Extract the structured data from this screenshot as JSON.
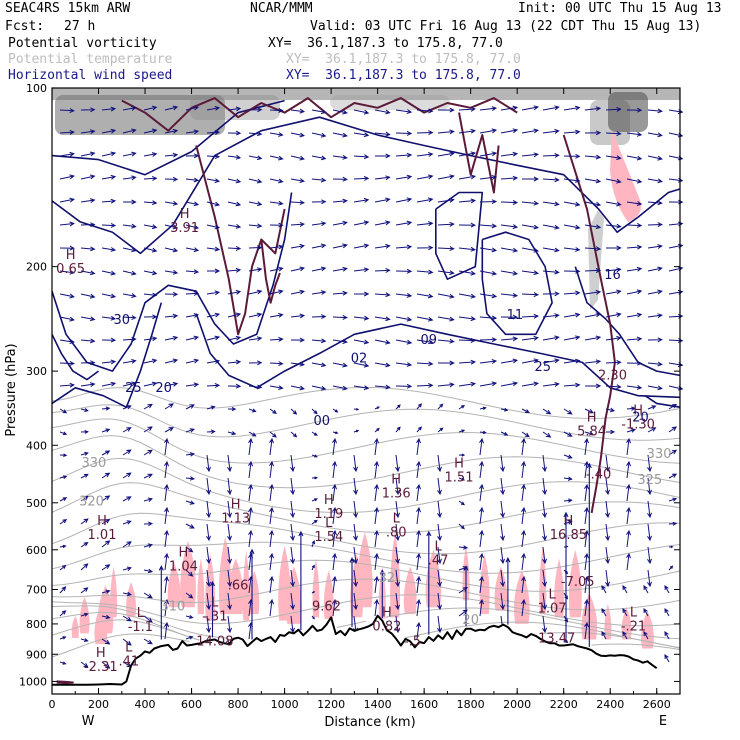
{
  "header": {
    "model": "SEAC4RS 15km ARW",
    "org": "NCAR/MMM",
    "init": "Init: 00 UTC Thu 15 Aug 13",
    "fcst_label": "Fcst:",
    "fcst_value": "27 h",
    "valid": "Valid: 03 UTC Fri 16 Aug 13 (22 CDT Thu 15 Aug 13)",
    "fields": [
      {
        "name": "Potential vorticity",
        "xy": "XY=  36.1,187.3 to 175.8, 77.0"
      },
      {
        "name": "Potential temperature",
        "xy": "XY=  36.1,187.3 to 175.8, 77.0"
      },
      {
        "name": "Horizontal wind speed",
        "xy": "XY=  36.1,187.3 to 175.8, 77.0"
      }
    ]
  },
  "colors": {
    "pv_contour": "#5c1a3a",
    "theta_contour": "#b4b4b4",
    "wind_contour": "#10106e",
    "wind_vector": "#10107e",
    "pv_fill": "#ffb6c1",
    "terrain": "#000000",
    "header_navy": "#1a1a8c",
    "header_grey": "#bdbdbd"
  },
  "chart_data": {
    "type": "cross-section",
    "xlabel": "Distance (km)",
    "ylabel": "Pressure (hPa)",
    "xlim": [
      0,
      2700
    ],
    "ylim": [
      100,
      1050
    ],
    "y_scale": "log",
    "x_ticks": [
      "0",
      "200",
      "400",
      "600",
      "800",
      "1000",
      "1200",
      "1400",
      "1600",
      "1800",
      "2000",
      "2200",
      "2400",
      "2600"
    ],
    "y_ticks": [
      "100",
      "200",
      "300",
      "400",
      "500",
      "600",
      "700",
      "800",
      "900",
      "1000"
    ],
    "x_end_labels": {
      "left": "W",
      "right": "E"
    },
    "terrain": {
      "x": [
        0,
        40,
        100,
        150,
        200,
        250,
        300,
        320,
        340,
        360,
        380,
        400,
        420,
        440,
        470,
        500,
        520,
        540,
        560,
        580,
        600,
        620,
        640,
        660,
        680,
        700,
        720,
        740,
        760,
        780,
        800,
        820,
        840,
        860,
        880,
        900,
        920,
        940,
        960,
        980,
        1000,
        1020,
        1040,
        1060,
        1080,
        1100,
        1120,
        1140,
        1160,
        1180,
        1200,
        1220,
        1240,
        1260,
        1280,
        1300,
        1320,
        1340,
        1360,
        1380,
        1400,
        1420,
        1440,
        1460,
        1480,
        1500,
        1520,
        1540,
        1560,
        1580,
        1600,
        1620,
        1640,
        1660,
        1680,
        1700,
        1720,
        1740,
        1760,
        1780,
        1800,
        1820,
        1840,
        1860,
        1880,
        1900,
        1920,
        1940,
        1960,
        1980,
        2000,
        2020,
        2040,
        2060,
        2080,
        2100,
        2120,
        2140,
        2160,
        2180,
        2200,
        2220,
        2240,
        2260,
        2280,
        2300,
        2320,
        2340,
        2360,
        2380,
        2400,
        2420,
        2440,
        2460,
        2480,
        2500,
        2520,
        2540,
        2560,
        2580,
        2600,
        2620,
        2640,
        2660,
        2680,
        2700
      ],
      "p": [
        1013,
        1013,
        1013,
        1013,
        1012,
        1010,
        1012,
        1000,
        940,
        915,
        905,
        890,
        895,
        880,
        872,
        868,
        885,
        880,
        855,
        870,
        868,
        865,
        862,
        855,
        852,
        850,
        858,
        862,
        866,
        848,
        844,
        850,
        872,
        858,
        845,
        855,
        848,
        842,
        858,
        835,
        838,
        826,
        830,
        818,
        836,
        822,
        806,
        822,
        818,
        802,
        780,
        832,
        822,
        836,
        814,
        822,
        817,
        813,
        808,
        800,
        775,
        790,
        820,
        830,
        848,
        870,
        848,
        856,
        876,
        858,
        862,
        842,
        854,
        836,
        848,
        826,
        848,
        820,
        836,
        815,
        815,
        822,
        818,
        820,
        810,
        806,
        810,
        802,
        810,
        826,
        832,
        836,
        843,
        832,
        838,
        848,
        856,
        862,
        862,
        870,
        870,
        868,
        866,
        872,
        876,
        880,
        886,
        898,
        905,
        906,
        904,
        905,
        903,
        904,
        908,
        918,
        922,
        930,
        925,
        938,
        950
      ]
    },
    "pv_extrema": [
      {
        "kind": "L",
        "value": "-1.1",
        "x": 380,
        "p": 823
      },
      {
        "kind": "H",
        "value": "1.01",
        "x": 215,
        "p": 575
      },
      {
        "kind": "H",
        "value": "1.13",
        "x": 790,
        "p": 540
      },
      {
        "kind": "H",
        "value": "1.04",
        "x": 565,
        "p": 650
      },
      {
        "kind": "L",
        "value": "-.31",
        "x": 700,
        "p": 790
      },
      {
        "kind": "",
        "value": "14.08",
        "x": 700,
        "p": 870
      },
      {
        "kind": "",
        "value": ".66",
        "x": 800,
        "p": 700
      },
      {
        "kind": "H",
        "value": "1.19",
        "x": 1190,
        "p": 530
      },
      {
        "kind": "L",
        "value": "1.54",
        "x": 1190,
        "p": 580
      },
      {
        "kind": "H",
        "value": "1.36",
        "x": 1480,
        "p": 490
      },
      {
        "kind": "L",
        "value": ".80",
        "x": 1480,
        "p": 570
      },
      {
        "kind": "H",
        "value": "1.51",
        "x": 1750,
        "p": 460
      },
      {
        "kind": "L",
        "value": ".47",
        "x": 1660,
        "p": 635
      },
      {
        "kind": "",
        "value": "9.62",
        "x": 1180,
        "p": 760
      },
      {
        "kind": "H",
        "value": "0.82",
        "x": 1440,
        "p": 820
      },
      {
        "kind": "H",
        "value": "16.85",
        "x": 2220,
        "p": 575
      },
      {
        "kind": "",
        "value": "-7.05",
        "x": 2260,
        "p": 690
      },
      {
        "kind": "L",
        "value": "1.07",
        "x": 2150,
        "p": 765
      },
      {
        "kind": "L",
        "value": "-.21",
        "x": 2500,
        "p": 820
      },
      {
        "kind": "",
        "value": "13.47",
        "x": 2170,
        "p": 860
      },
      {
        "kind": "H",
        "value": "5.84",
        "x": 2320,
        "p": 385
      },
      {
        "kind": "",
        "value": "-.40",
        "x": 2350,
        "p": 455
      },
      {
        "kind": "H",
        "value": "-1.30",
        "x": 2520,
        "p": 375
      },
      {
        "kind": "H",
        "value": "0.65",
        "x": 80,
        "p": 205
      },
      {
        "kind": "H",
        "value": "3.91",
        "x": 570,
        "p": 175
      },
      {
        "kind": "",
        "value": "2.30",
        "x": 2410,
        "p": 310
      },
      {
        "kind": "H",
        "value": "-2.31",
        "x": 210,
        "p": 960
      },
      {
        "kind": "L",
        "value": ".41",
        "x": 330,
        "p": 940
      },
      {
        "kind": "",
        "value": "-.5",
        "x": 1550,
        "p": 870
      }
    ],
    "wind_labels": [
      {
        "value": "30",
        "x": 300,
        "p": 250
      },
      {
        "value": "25",
        "x": 350,
        "p": 325
      },
      {
        "value": "20",
        "x": 480,
        "p": 325
      },
      {
        "value": "02",
        "x": 1320,
        "p": 290
      },
      {
        "value": "00",
        "x": 1160,
        "p": 370
      },
      {
        "value": "09",
        "x": 1620,
        "p": 270
      },
      {
        "value": "11",
        "x": 1990,
        "p": 245
      },
      {
        "value": "25",
        "x": 2110,
        "p": 300
      },
      {
        "value": "16",
        "x": 2410,
        "p": 210
      },
      {
        "value": "20",
        "x": 2530,
        "p": 365
      }
    ],
    "theta_labels": [
      {
        "value": "330",
        "x": 180,
        "p": 435
      },
      {
        "value": "320",
        "x": 170,
        "p": 505
      },
      {
        "value": "325",
        "x": 2570,
        "p": 465
      },
      {
        "value": "330",
        "x": 2610,
        "p": 420
      },
      {
        "value": "310",
        "x": 520,
        "p": 760
      },
      {
        "value": "32",
        "x": 1440,
        "p": 680
      },
      {
        "value": "20",
        "x": 1800,
        "p": 800
      }
    ]
  }
}
